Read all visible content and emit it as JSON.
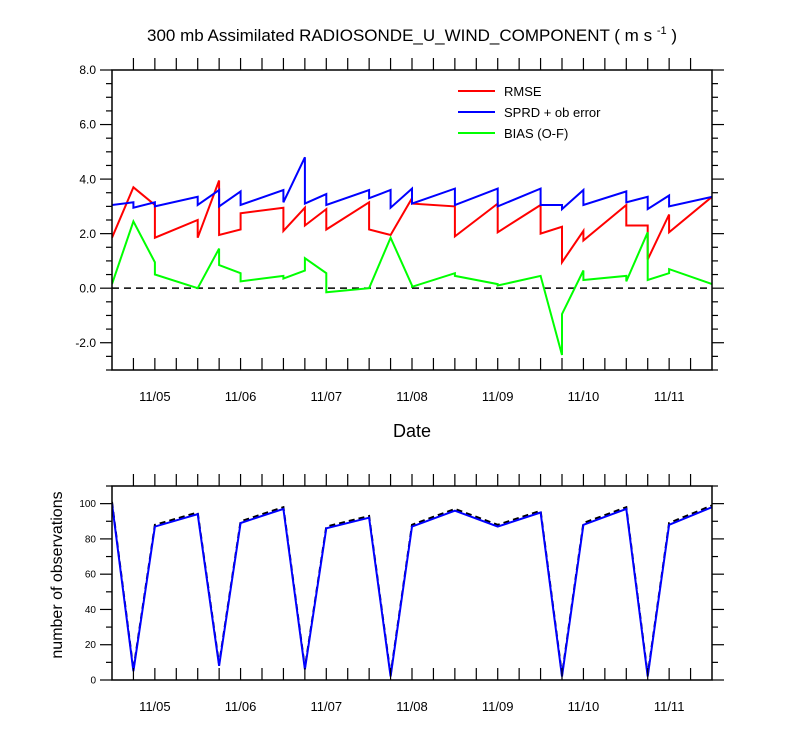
{
  "title": {
    "main": "300 mb Assimilated RADIOSONDE_U_WIND_COMPONENT ( m s",
    "sup": "-1",
    "close": " )"
  },
  "chart_data": [
    {
      "type": "line",
      "xlabel": "Date",
      "ylabel": "",
      "xlim": [
        0,
        7
      ],
      "ylim": [
        -3,
        8
      ],
      "x_tick_labels": [
        "11/05",
        "11/06",
        "11/07",
        "11/08",
        "11/09",
        "11/10",
        "11/11"
      ],
      "x_tick_positions": [
        0.5,
        1.5,
        2.5,
        3.5,
        4.5,
        5.5,
        6.5
      ],
      "y_ticks": [
        -2,
        0,
        2,
        4,
        6,
        8
      ],
      "y_tick_labels": [
        "-2.0",
        "0.0",
        "2.0",
        "4.0",
        "6.0",
        "8.0"
      ],
      "zero_line": "dashed",
      "legend_position": "top-right",
      "series": [
        {
          "name": "RMSE",
          "color": "#ff0000",
          "x": [
            0,
            0.25,
            0.5,
            0.5,
            1.0,
            1.0,
            1.25,
            1.25,
            1.5,
            1.5,
            2.0,
            2.0,
            2.25,
            2.25,
            2.5,
            2.5,
            3.0,
            3.0,
            3.25,
            3.5,
            3.5,
            4.0,
            4.0,
            4.5,
            4.5,
            5.0,
            5.0,
            5.25,
            5.25,
            5.5,
            5.5,
            6.0,
            6.0,
            6.25,
            6.25,
            6.5,
            6.5,
            7.0
          ],
          "y": [
            1.85,
            3.7,
            3.05,
            1.85,
            2.5,
            1.85,
            3.95,
            1.95,
            2.15,
            2.75,
            2.95,
            2.1,
            2.95,
            2.3,
            2.9,
            2.15,
            3.15,
            2.15,
            1.95,
            3.3,
            3.1,
            3.0,
            1.9,
            3.1,
            2.05,
            3.05,
            2.0,
            2.25,
            0.95,
            2.1,
            1.75,
            3.05,
            2.3,
            2.3,
            1.05,
            2.7,
            2.05,
            3.35
          ]
        },
        {
          "name": "SPRD + ob error",
          "color": "#0000ff",
          "x": [
            0,
            0.25,
            0.25,
            0.5,
            0.5,
            1.0,
            1.0,
            1.25,
            1.25,
            1.5,
            1.5,
            2.0,
            2.0,
            2.25,
            2.25,
            2.5,
            2.5,
            3.0,
            3.0,
            3.25,
            3.25,
            3.5,
            3.5,
            4.0,
            4.0,
            4.5,
            4.5,
            5.0,
            5.0,
            5.25,
            5.25,
            5.5,
            5.5,
            6.0,
            6.0,
            6.25,
            6.25,
            6.5,
            6.5,
            7.0
          ],
          "y": [
            3.05,
            3.15,
            2.95,
            3.15,
            3.0,
            3.35,
            3.05,
            3.6,
            3.0,
            3.55,
            3.05,
            3.6,
            3.15,
            4.8,
            3.1,
            3.45,
            3.05,
            3.6,
            3.3,
            3.6,
            2.95,
            3.65,
            3.1,
            3.65,
            3.05,
            3.65,
            3.0,
            3.65,
            3.05,
            3.05,
            2.9,
            3.6,
            3.05,
            3.55,
            3.15,
            3.35,
            2.9,
            3.4,
            3.0,
            3.35
          ]
        },
        {
          "name": "BIAS (O-F)",
          "color": "#00ff00",
          "x": [
            0,
            0.25,
            0.5,
            0.5,
            1.0,
            1.25,
            1.25,
            1.5,
            1.5,
            2.0,
            2.0,
            2.25,
            2.25,
            2.5,
            2.5,
            3.0,
            3.25,
            3.5,
            3.5,
            4.0,
            4.0,
            4.5,
            4.5,
            5.0,
            5.25,
            5.25,
            5.5,
            5.5,
            6.0,
            6.0,
            6.25,
            6.25,
            6.5,
            6.5,
            7.0
          ],
          "y": [
            0.15,
            2.45,
            0.95,
            0.5,
            0.0,
            1.45,
            0.85,
            0.55,
            0.25,
            0.45,
            0.35,
            0.65,
            1.1,
            0.55,
            -0.15,
            0.0,
            1.85,
            0.1,
            0.05,
            0.55,
            0.45,
            0.15,
            0.1,
            0.45,
            -2.45,
            -0.95,
            0.65,
            0.3,
            0.45,
            0.25,
            2.05,
            0.3,
            0.55,
            0.7,
            0.15
          ]
        }
      ]
    },
    {
      "type": "line",
      "xlabel": "",
      "ylabel": "number of observations",
      "xlim": [
        0,
        7
      ],
      "ylim": [
        0,
        110
      ],
      "x_tick_labels": [
        "11/05",
        "11/06",
        "11/07",
        "11/08",
        "11/09",
        "11/10",
        "11/11"
      ],
      "x_tick_positions": [
        0.5,
        1.5,
        2.5,
        3.5,
        4.5,
        5.5,
        6.5
      ],
      "y_ticks": [
        0,
        20,
        40,
        60,
        80,
        100
      ],
      "y_tick_labels": [
        "0",
        "20",
        "40",
        "60",
        "80",
        "100"
      ],
      "series": [
        {
          "color": "#000000",
          "dash": "dashed",
          "x": [
            0,
            0.25,
            0.5,
            1.0,
            1.25,
            1.5,
            2.0,
            2.25,
            2.5,
            3.0,
            3.25,
            3.5,
            4.0,
            4.5,
            5.0,
            5.25,
            5.5,
            6.0,
            6.25,
            6.5,
            7.0
          ],
          "y": [
            101,
            6,
            88,
            95,
            9,
            90,
            98,
            7,
            87,
            93,
            3,
            88,
            97,
            88,
            96,
            3,
            89,
            98,
            3,
            89,
            99
          ]
        },
        {
          "color": "#0000ff",
          "dash": "solid",
          "x": [
            0,
            0.25,
            0.5,
            1.0,
            1.25,
            1.5,
            2.0,
            2.25,
            2.5,
            3.0,
            3.25,
            3.5,
            4.0,
            4.5,
            5.0,
            5.25,
            5.5,
            6.0,
            6.25,
            6.5,
            7.0
          ],
          "y": [
            100,
            5,
            87,
            94,
            8,
            89,
            97,
            6,
            86,
            92,
            2,
            87,
            96,
            87,
            95,
            2,
            88,
            97,
            2,
            88,
            98
          ]
        }
      ]
    }
  ]
}
